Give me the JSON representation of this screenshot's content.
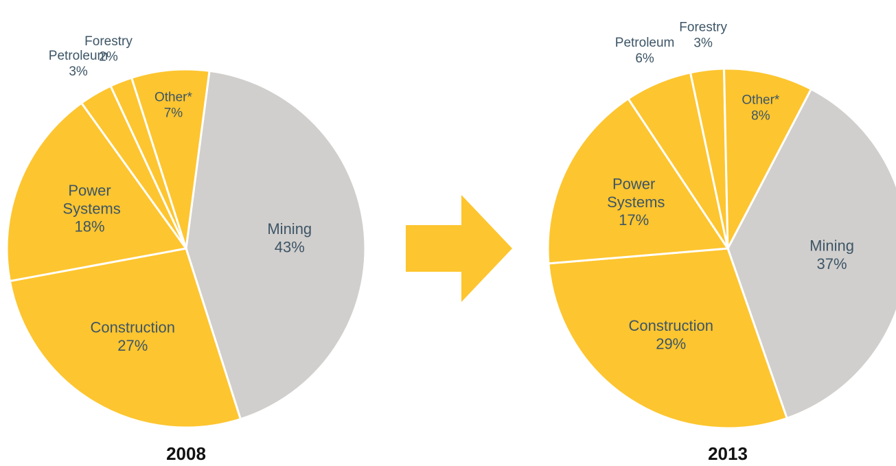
{
  "chart_data": [
    {
      "type": "pie",
      "title": "2008",
      "categories": [
        "Mining",
        "Construction",
        "Power Systems",
        "Petroleum",
        "Forestry",
        "Other*"
      ],
      "values": [
        43,
        27,
        18,
        3,
        2,
        7
      ],
      "value_labels": [
        "43%",
        "27%",
        "18%",
        "3%",
        "2%",
        "7%"
      ],
      "colors": [
        "#d1cfcd",
        "#fdc52f",
        "#fdc52f",
        "#fdc52f",
        "#fdc52f",
        "#fdc52f"
      ]
    },
    {
      "type": "pie",
      "title": "2013",
      "categories": [
        "Mining",
        "Construction",
        "Power Systems",
        "Petroleum",
        "Forestry",
        "Other*"
      ],
      "values": [
        37,
        29,
        17,
        6,
        3,
        8
      ],
      "value_labels": [
        "37%",
        "29%",
        "17%",
        "6%",
        "3%",
        "8%"
      ],
      "colors": [
        "#d1cfcd",
        "#fdc52f",
        "#fdc52f",
        "#fdc52f",
        "#fdc52f",
        "#fdc52f"
      ]
    }
  ]
}
